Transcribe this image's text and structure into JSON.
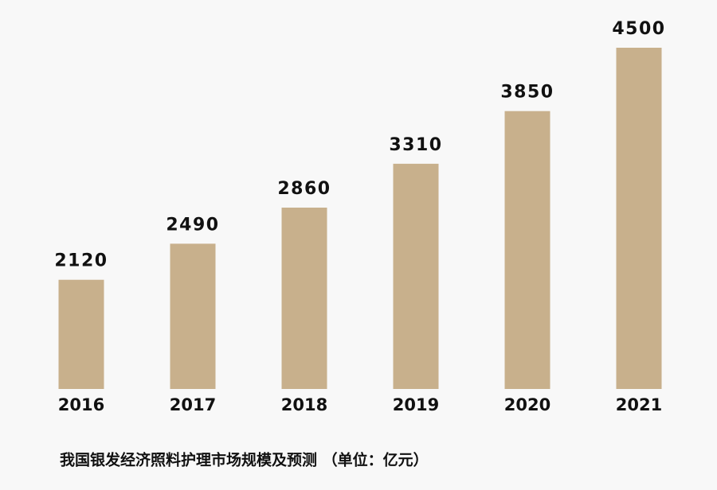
{
  "chart_data": {
    "type": "bar",
    "caption": "我国银发经济照料护理市场规模及预测 （单位：亿元）",
    "categories": [
      "2016",
      "2017",
      "2018",
      "2019",
      "2020",
      "2021"
    ],
    "values": [
      2120,
      2490,
      2860,
      3310,
      3850,
      4500
    ],
    "color": "#c8b08c",
    "ylim": [
      1000,
      4500
    ]
  }
}
